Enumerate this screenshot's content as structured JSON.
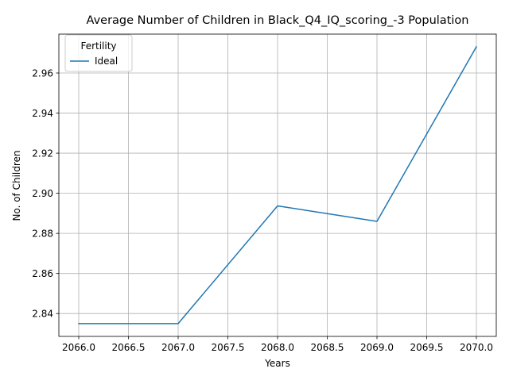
{
  "chart_data": {
    "type": "line",
    "title": "Average Number of Children in Black_Q4_IQ_scoring_-3 Population",
    "xlabel": "Years",
    "ylabel": "No. of Children",
    "xlim": [
      2065.8,
      2070.2
    ],
    "ylim": [
      2.8286,
      2.9794
    ],
    "x_ticks": [
      2066.0,
      2066.5,
      2067.0,
      2067.5,
      2068.0,
      2068.5,
      2069.0,
      2069.5,
      2070.0
    ],
    "x_tick_labels": [
      "2066.0",
      "2066.5",
      "2067.0",
      "2067.5",
      "2068.0",
      "2068.5",
      "2069.0",
      "2069.5",
      "2070.0"
    ],
    "y_ticks": [
      2.84,
      2.86,
      2.88,
      2.9,
      2.92,
      2.94,
      2.96
    ],
    "y_tick_labels": [
      "2.84",
      "2.86",
      "2.88",
      "2.90",
      "2.92",
      "2.94",
      "2.96"
    ],
    "grid": true,
    "legend": {
      "title": "Fertility",
      "placement": "top-left"
    },
    "series": [
      {
        "name": "Ideal",
        "color": "#1f77b4",
        "x": [
          2066,
          2067,
          2068,
          2069,
          2070
        ],
        "y": [
          2.835,
          2.835,
          2.8937,
          2.886,
          2.9731
        ]
      }
    ]
  }
}
